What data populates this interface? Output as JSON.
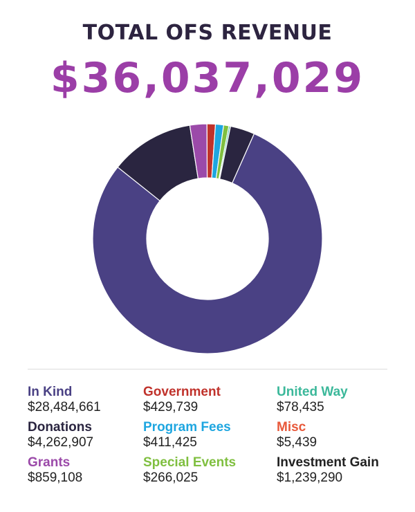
{
  "header": {
    "title": "TOTAL OFS REVENUE",
    "total": "$36,037,029"
  },
  "chart_data": {
    "type": "pie",
    "style": "donut",
    "start_category": "Government",
    "total": 36037029,
    "categories": [
      "In Kind",
      "Donations",
      "Grants",
      "Government",
      "Program Fees",
      "Special Events",
      "United Way",
      "Misc",
      "Investment Gain"
    ],
    "values": [
      28484661,
      4262907,
      859108,
      429739,
      411425,
      266025,
      78435,
      5439,
      1239290
    ],
    "value_labels": [
      "$28,484,661",
      "$4,262,907",
      "$859,108",
      "$429,739",
      "$411,425",
      "$266,025",
      "$78,435",
      "$5,439",
      "$1,239,290"
    ],
    "colors": [
      "#4a4184",
      "#2a2540",
      "#9b4aa9",
      "#c0322b",
      "#1ea6e0",
      "#7fbf3f",
      "#3bb89a",
      "#e8583a",
      "#2a2540"
    ],
    "legend_colors": [
      "#4a4184",
      "#2a2540",
      "#9b4aa9",
      "#c0322b",
      "#1ea6e0",
      "#7fbf3f",
      "#3bb89a",
      "#e8583a",
      "#222222"
    ],
    "legend_position": "bottom",
    "legend_order": [
      "In Kind",
      "Government",
      "United Way",
      "Donations",
      "Program Fees",
      "Misc",
      "Grants",
      "Special Events",
      "Investment Gain"
    ]
  }
}
